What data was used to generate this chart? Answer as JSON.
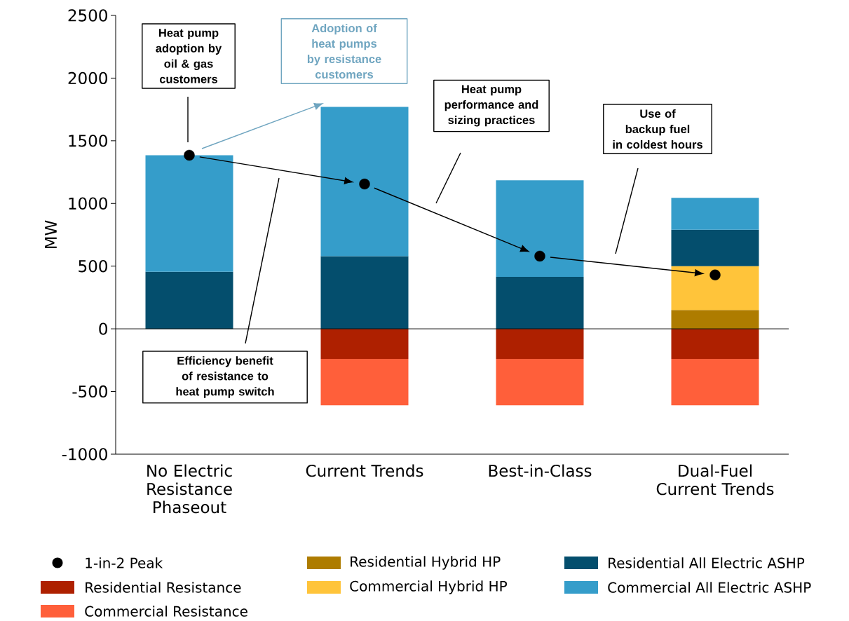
{
  "chart_data": {
    "type": "bar",
    "stacked": true,
    "categories": [
      "No Electric Resistance Phaseout",
      "Current Trends",
      "Best-in-Class",
      "Dual-Fuel Current Trends"
    ],
    "ylabel": "MW",
    "ylim": [
      -1000,
      2500
    ],
    "yticks": [
      -1000,
      -500,
      0,
      500,
      1000,
      1500,
      2000,
      2500
    ],
    "series": [
      {
        "name": "1-in-2 Peak",
        "type": "scatter",
        "color": "#000000",
        "values": [
          1385,
          1155,
          580,
          430
        ]
      },
      {
        "name": "Residential Resistance",
        "color": "#ae2000",
        "values": [
          null,
          -240,
          -240,
          -240
        ]
      },
      {
        "name": "Commercial Resistance",
        "color": "#ff5f3a",
        "values": [
          null,
          -370,
          -370,
          -370
        ]
      },
      {
        "name": "Residential Hybrid HP",
        "color": "#ae7c00",
        "values": [
          null,
          null,
          null,
          150
        ]
      },
      {
        "name": "Commercial Hybrid HP",
        "color": "#ffc43a",
        "values": [
          null,
          null,
          null,
          350
        ]
      },
      {
        "name": "Residential All Electric ASHP",
        "color": "#044e6d",
        "values": [
          455,
          580,
          415,
          290
        ]
      },
      {
        "name": "Commercial All Electric ASHP",
        "color": "#359dca",
        "values": [
          930,
          1190,
          770,
          255
        ]
      }
    ],
    "ref_lines": [
      {
        "axis": "y",
        "value": 0,
        "color": "#000000"
      }
    ],
    "annotations": [
      "Heat pump adoption by oil & gas customers",
      "Adoption of heat pumps by resistance customers",
      "Heat pump performance and sizing practices",
      "Use of backup fuel in coldest hours",
      "Efficiency benefit of resistance to heat pump switch"
    ],
    "legend": "bottom"
  }
}
